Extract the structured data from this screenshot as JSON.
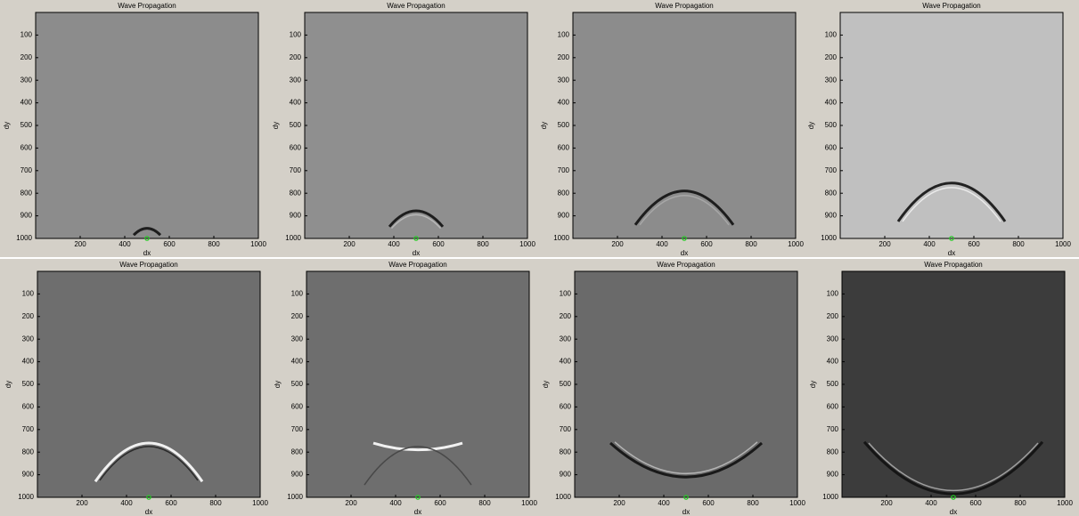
{
  "chart_data": [
    {
      "type": "image",
      "title": "Wave Propagation",
      "x_label": "dx",
      "y_label": "dy",
      "background": "#8c8c8c",
      "xlim": [
        0,
        1000
      ],
      "ylim": [
        1000,
        0
      ],
      "xticks": [
        200,
        400,
        600,
        800,
        1000
      ],
      "yticks": [
        100,
        200,
        300,
        400,
        500,
        600,
        700,
        800,
        900,
        1000
      ],
      "x": [
        500
      ],
      "values": [
        1000
      ],
      "color": "#22cc22"
    },
    {
      "type": "image",
      "title": "Wave Propagation",
      "x_label": "dx",
      "y_label": "dy",
      "background": "#8f8f8f",
      "xlim": [
        0,
        1000
      ],
      "ylim": [
        1000,
        0
      ],
      "xticks": [
        200,
        400,
        600,
        800,
        1000
      ],
      "yticks": [
        100,
        200,
        300,
        400,
        500,
        600,
        700,
        800,
        900,
        1000
      ],
      "x": [
        500
      ],
      "values": [
        1000
      ],
      "color": "#22cc22"
    },
    {
      "type": "image",
      "title": "Wave Propagation",
      "x_label": "dx",
      "y_label": "dy",
      "background": "#8c8c8c",
      "xlim": [
        0,
        1000
      ],
      "ylim": [
        1000,
        0
      ],
      "xticks": [
        200,
        400,
        600,
        800,
        1000
      ],
      "yticks": [
        100,
        200,
        300,
        400,
        500,
        600,
        700,
        800,
        900,
        1000
      ],
      "x": [
        500
      ],
      "values": [
        1000
      ],
      "color": "#22cc22"
    },
    {
      "type": "image",
      "title": "Wave Propagation",
      "x_label": "dx",
      "y_label": "dy",
      "background": "#c0c0c0",
      "xlim": [
        0,
        1000
      ],
      "ylim": [
        1000,
        0
      ],
      "xticks": [
        200,
        400,
        600,
        800,
        1000
      ],
      "yticks": [
        100,
        200,
        300,
        400,
        500,
        600,
        700,
        800,
        900,
        1000
      ],
      "x": [
        500
      ],
      "values": [
        1000
      ],
      "color": "#22cc22"
    },
    {
      "type": "image",
      "title": "Wave Propagation",
      "x_label": "dx",
      "y_label": "dy",
      "background": "#6e6e6e",
      "xlim": [
        0,
        1000
      ],
      "ylim": [
        1000,
        0
      ],
      "xticks": [
        200,
        400,
        600,
        800,
        1000
      ],
      "yticks": [
        100,
        200,
        300,
        400,
        500,
        600,
        700,
        800,
        900,
        1000
      ],
      "x": [
        500
      ],
      "values": [
        1000
      ],
      "color": "#22cc22"
    },
    {
      "type": "image",
      "title": "Wave Propagation",
      "x_label": "dx",
      "y_label": "dy",
      "background": "#6e6e6e",
      "xlim": [
        0,
        1000
      ],
      "ylim": [
        1000,
        0
      ],
      "xticks": [
        200,
        400,
        600,
        800,
        1000
      ],
      "yticks": [
        100,
        200,
        300,
        400,
        500,
        600,
        700,
        800,
        900,
        1000
      ],
      "x": [
        500
      ],
      "values": [
        1000
      ],
      "color": "#22cc22"
    },
    {
      "type": "image",
      "title": "Wave Propagation",
      "x_label": "dx",
      "y_label": "dy",
      "background": "#6a6a6a",
      "xlim": [
        0,
        1000
      ],
      "ylim": [
        1000,
        0
      ],
      "xticks": [
        200,
        400,
        600,
        800,
        1000
      ],
      "yticks": [
        100,
        200,
        300,
        400,
        500,
        600,
        700,
        800,
        900,
        1000
      ],
      "x": [
        500
      ],
      "values": [
        1000
      ],
      "color": "#22cc22"
    },
    {
      "type": "image",
      "title": "Wave Propagation",
      "x_label": "dx",
      "y_label": "dy",
      "background": "#3c3c3c",
      "xlim": [
        0,
        1000
      ],
      "ylim": [
        1000,
        0
      ],
      "xticks": [
        200,
        400,
        600,
        800,
        1000
      ],
      "yticks": [
        100,
        200,
        300,
        400,
        500,
        600,
        700,
        800,
        900,
        1000
      ],
      "x": [
        500
      ],
      "values": [
        1000
      ],
      "color": "#22cc22"
    }
  ]
}
